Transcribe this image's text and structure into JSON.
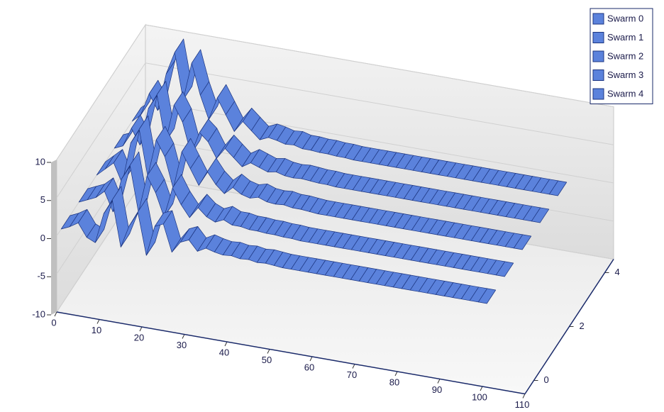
{
  "chart_data": {
    "type": "ribbon3d",
    "x": [
      0,
      2,
      4,
      6,
      8,
      10,
      12,
      14,
      16,
      18,
      20,
      22,
      24,
      26,
      28,
      30,
      32,
      34,
      36,
      38,
      40,
      42,
      44,
      46,
      48,
      50,
      52,
      54,
      56,
      58,
      60,
      62,
      64,
      66,
      68,
      70,
      72,
      74,
      76,
      78,
      80,
      82,
      84,
      86,
      88,
      90,
      92,
      94,
      96,
      98,
      100
    ],
    "series": [
      {
        "name": "Swarm 0",
        "color": "#5b82dc",
        "z": 0,
        "values": [
          0,
          0.5,
          1.2,
          -0.5,
          -1,
          3,
          5,
          -1,
          2,
          4,
          -1.5,
          2.5,
          3,
          -0.5,
          1,
          1.5,
          0.2,
          0.8,
          0.5,
          0.3,
          0.4,
          0.2,
          0.3,
          0.1,
          0.2,
          0.1,
          0,
          0,
          0,
          0,
          0,
          0,
          0,
          0,
          0,
          0,
          0,
          0,
          0,
          0,
          0,
          0,
          0,
          0,
          0,
          0,
          0,
          0,
          0,
          0,
          0
        ]
      },
      {
        "name": "Swarm 1",
        "color": "#5b82dc",
        "z": 1,
        "values": [
          0,
          0.5,
          1,
          2,
          -0.5,
          4,
          6,
          0,
          5,
          3,
          0,
          4,
          2,
          0.5,
          2,
          1,
          0.5,
          1,
          0.5,
          0.5,
          0.3,
          0.3,
          0.2,
          0.2,
          0.1,
          0.1,
          0,
          0,
          0,
          0,
          0,
          0,
          0,
          0,
          0,
          0,
          0,
          0,
          0,
          0,
          0,
          0,
          0,
          0,
          0,
          0,
          0,
          0,
          0,
          0,
          0
        ]
      },
      {
        "name": "Swarm 2",
        "color": "#5b82dc",
        "z": 2,
        "values": [
          0,
          1,
          2,
          -0.5,
          5,
          7,
          1,
          6,
          4,
          0,
          5,
          3,
          1,
          3,
          1.5,
          0.5,
          1.5,
          0.8,
          0.5,
          0.8,
          0.4,
          0.3,
          0.4,
          0.2,
          0.2,
          0.1,
          0,
          0,
          0,
          0,
          0,
          0,
          0,
          0,
          0,
          0,
          0,
          0,
          0,
          0,
          0,
          0,
          0,
          0,
          0,
          0,
          0,
          0,
          0,
          0,
          0
        ]
      },
      {
        "name": "Swarm 3",
        "color": "#5b82dc",
        "z": 3,
        "values": [
          0,
          0.5,
          3,
          1,
          6,
          8,
          2,
          7,
          5,
          1,
          4,
          3,
          1,
          2.5,
          1.5,
          0.5,
          1.2,
          0.8,
          0.4,
          0.6,
          0.3,
          0.2,
          0.3,
          0.2,
          0.1,
          0.1,
          0,
          0,
          0,
          0,
          0,
          0,
          0,
          0,
          0,
          0,
          0,
          0,
          0,
          0,
          0,
          0,
          0,
          0,
          0,
          0,
          0,
          0,
          0,
          0,
          0
        ]
      },
      {
        "name": "Swarm 4",
        "color": "#5b82dc",
        "z": 4,
        "values": [
          0,
          1,
          4,
          2,
          7,
          10,
          4,
          9,
          5,
          2,
          5,
          3,
          1,
          2.5,
          1.5,
          0.5,
          1,
          0.8,
          0.5,
          0.6,
          0.3,
          0.3,
          0.2,
          0.2,
          0.1,
          0.1,
          0,
          0,
          0,
          0,
          0,
          0,
          0,
          0,
          0,
          0,
          0,
          0,
          0,
          0,
          0,
          0,
          0,
          0,
          0,
          0,
          0,
          0,
          0,
          0,
          0
        ]
      }
    ],
    "xlim": [
      0,
      110
    ],
    "xticks": [
      0,
      10,
      20,
      30,
      40,
      50,
      60,
      70,
      80,
      90,
      100,
      110
    ],
    "ylim": [
      -10,
      10
    ],
    "yticks": [
      -10,
      -5,
      0,
      5,
      10
    ],
    "zlim": [
      -0.5,
      4.5
    ],
    "zticks": [
      0,
      2,
      4
    ],
    "grid": true,
    "legend": "top-right"
  }
}
